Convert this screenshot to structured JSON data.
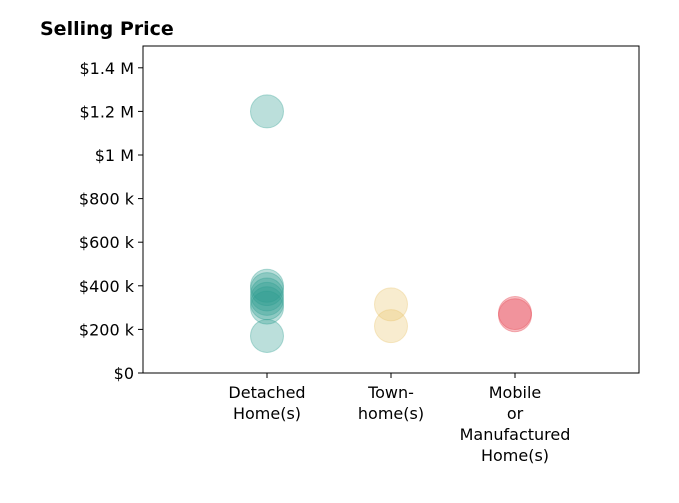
{
  "chart_data": {
    "type": "scatter",
    "title": "Selling Price",
    "xlabel": "",
    "ylabel": "",
    "ylim": [
      0,
      1500000
    ],
    "y_ticks": [
      {
        "value": 0,
        "label": "$0"
      },
      {
        "value": 200000,
        "label": "$200 k"
      },
      {
        "value": 400000,
        "label": "$400 k"
      },
      {
        "value": 600000,
        "label": "$600 k"
      },
      {
        "value": 800000,
        "label": "$800 k"
      },
      {
        "value": 1000000,
        "label": "$1 M"
      },
      {
        "value": 1200000,
        "label": "$1.2 M"
      },
      {
        "value": 1400000,
        "label": "$1.4 M"
      }
    ],
    "categories": [
      {
        "label_lines": [
          "Detached",
          "Home(s)"
        ]
      },
      {
        "label_lines": [
          "Town-",
          "home(s)"
        ]
      },
      {
        "label_lines": [
          "Mobile",
          "or",
          "Manufactured",
          "Home(s)"
        ]
      }
    ],
    "grid": false,
    "series": [
      {
        "color": "#2a9d8f",
        "category_index": 0,
        "values": [
          1200000,
          400000,
          385000,
          360000,
          340000,
          320000,
          300000,
          170000
        ]
      },
      {
        "color": "#e9c46a",
        "category_index": 1,
        "values": [
          315000,
          215000
        ]
      },
      {
        "color": "#e63946",
        "category_index": 2,
        "values": [
          275000,
          265000
        ]
      }
    ]
  }
}
